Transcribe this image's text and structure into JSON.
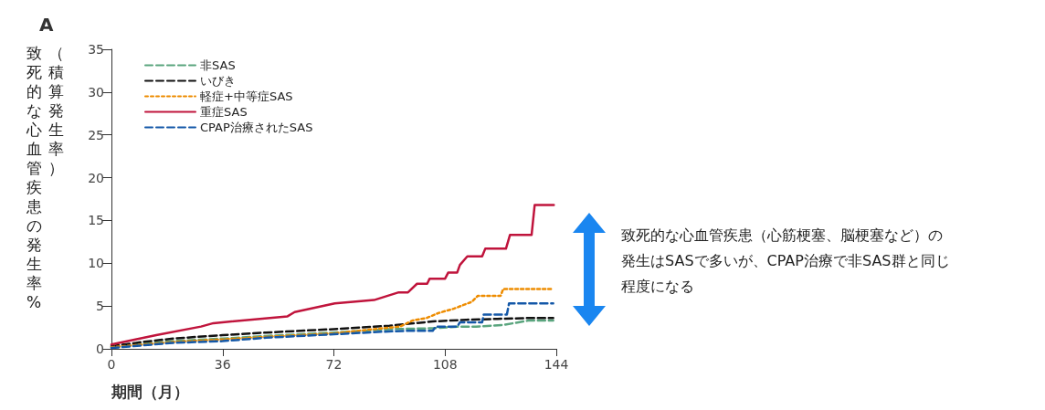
{
  "chart_data": {
    "type": "line",
    "title": "A",
    "xlabel": "期間（月）",
    "ylabel": "致死的な心血管疾患の発生率%（積算発生率）",
    "xlim": [
      0,
      144
    ],
    "xticks": [
      0,
      36,
      72,
      108,
      144
    ],
    "ylim": [
      0,
      35
    ],
    "yticks": [
      0,
      5,
      10,
      15,
      20,
      25,
      30,
      35
    ],
    "grid": false,
    "legend": "top left",
    "marker": "none",
    "series": [
      {
        "name": "非SAS",
        "color": "#5aa57e",
        "line_style": "dashed",
        "x": [
          0,
          10,
          20,
          36,
          50,
          72,
          90,
          104,
          112,
          118,
          127,
          135,
          143
        ],
        "values": [
          0.2,
          0.6,
          0.9,
          1.2,
          1.5,
          1.9,
          2.3,
          2.4,
          2.6,
          2.6,
          2.8,
          3.3,
          3.3
        ]
      },
      {
        "name": "いびき",
        "color": "#111111",
        "line_style": "dashed",
        "x": [
          0,
          10,
          20,
          36,
          50,
          72,
          90,
          104,
          115,
          125,
          135,
          143
        ],
        "values": [
          0.3,
          0.8,
          1.2,
          1.6,
          1.9,
          2.3,
          2.7,
          3.2,
          3.4,
          3.5,
          3.6,
          3.6
        ]
      },
      {
        "name": "軽症+中等症SAS",
        "color": "#ee8c00",
        "line_style": "dotted",
        "x": [
          0,
          10,
          20,
          36,
          50,
          72,
          85,
          93.5,
          97.4,
          102,
          106,
          110.9,
          116.7,
          118.6,
          126,
          126.8,
          143
        ],
        "values": [
          0.2,
          0.5,
          0.8,
          1.1,
          1.4,
          1.8,
          2.3,
          2.6,
          3.3,
          3.6,
          4.2,
          4.7,
          5.5,
          6.2,
          6.2,
          7.0,
          7.0
        ]
      },
      {
        "name": "重症SAS",
        "color": "#c0143c",
        "line_style": "solid",
        "x": [
          0,
          14.5,
          29,
          33,
          57,
          59.3,
          72.3,
          85,
          93,
          96,
          98.9,
          102.2,
          103,
          108,
          109,
          111.9,
          112.8,
          115.2,
          120,
          121,
          127.7,
          129,
          136,
          137,
          143.2
        ],
        "values": [
          0.5,
          1.6,
          2.6,
          3.0,
          3.8,
          4.3,
          5.3,
          5.7,
          6.6,
          6.6,
          7.6,
          7.6,
          8.2,
          8.2,
          8.9,
          8.9,
          9.8,
          10.8,
          10.8,
          11.7,
          11.7,
          13.3,
          13.3,
          16.8,
          16.8
        ]
      },
      {
        "name": "CPAP治療されたSAS",
        "color": "#1458a8",
        "line_style": "dashed",
        "x": [
          0,
          10,
          20,
          36,
          50,
          72,
          88,
          95,
          104,
          105,
          112,
          112.8,
          120,
          120.5,
          128,
          128.7,
          143
        ],
        "values": [
          0.1,
          0.4,
          0.7,
          0.9,
          1.3,
          1.7,
          2.0,
          2.1,
          2.1,
          2.6,
          2.6,
          3.1,
          3.1,
          4.0,
          4.0,
          5.3,
          5.3
        ]
      }
    ],
    "annotations": [
      "致死的な心血管疾患（心筋梗塞、脳梗塞など）の",
      "発生はSASで多いが、CPAP治療で非SAS群と同じ",
      "程度になる"
    ]
  }
}
